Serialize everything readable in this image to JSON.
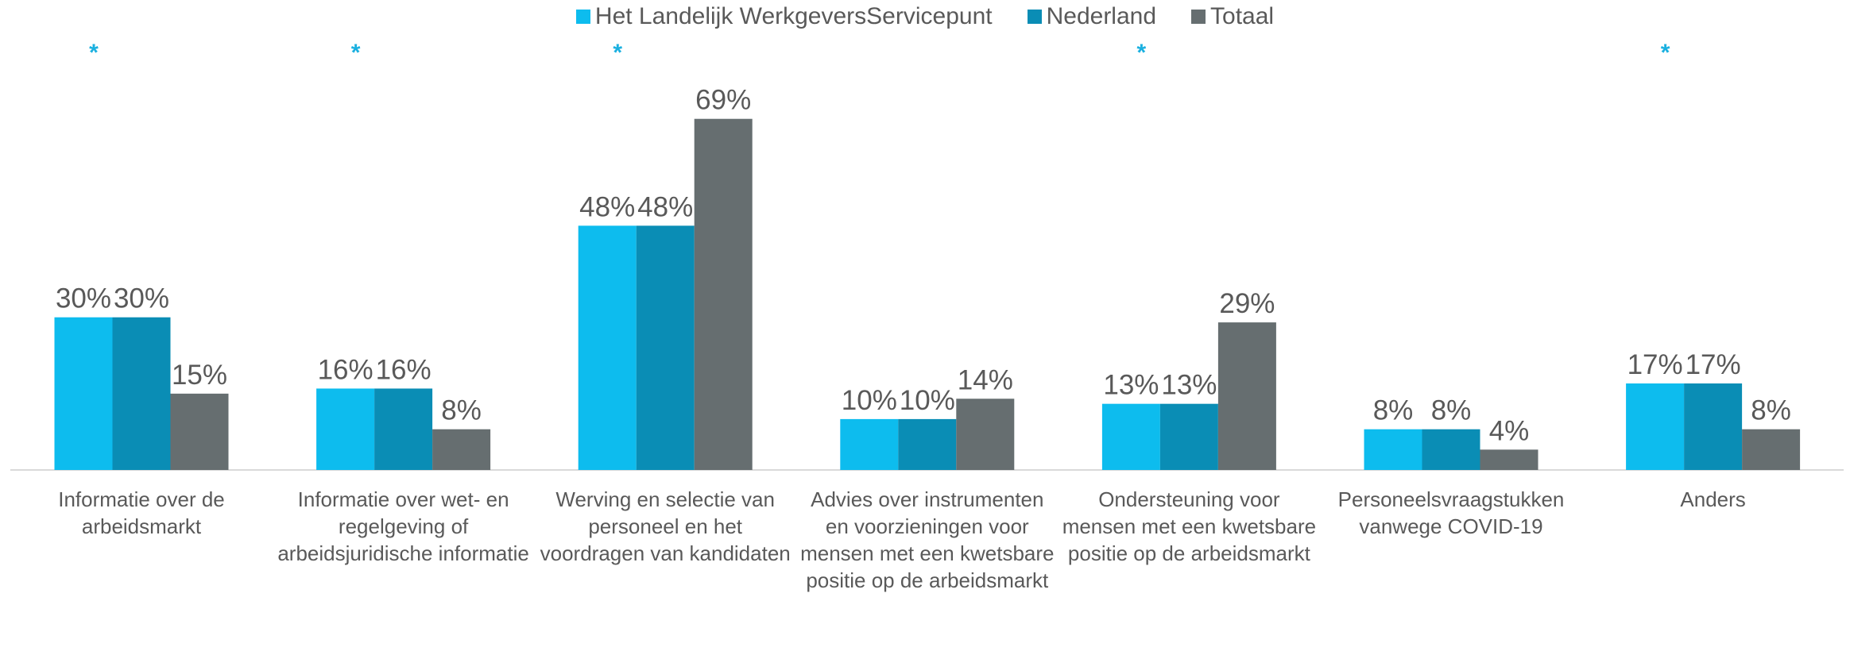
{
  "chart_data": {
    "type": "bar",
    "categories": [
      "Informatie over de arbeidsmarkt",
      "Informatie over wet- en regelgeving of arbeidsjuridische informatie",
      "Werving en selectie van personeel en het voordragen van kandidaten",
      "Advies over instrumenten en voorzieningen voor mensen met een kwetsbare positie op de arbeidsmarkt",
      "Ondersteuning voor mensen met een kwetsbare positie op de arbeidsmarkt",
      "Personeelsvraagstukken vanwege COVID-19",
      "Anders"
    ],
    "series": [
      {
        "name": "Het Landelijk WerkgeversServicepunt",
        "color": "#0dbcee",
        "values": [
          30,
          16,
          48,
          10,
          13,
          8,
          17
        ],
        "value_labels": [
          "30%",
          "16%",
          "48%",
          "10%",
          "13%",
          "8%",
          "17%"
        ]
      },
      {
        "name": "Nederland",
        "color": "#0a8db5",
        "values": [
          30,
          16,
          48,
          10,
          13,
          8,
          17
        ],
        "value_labels": [
          "30%",
          "16%",
          "48%",
          "10%",
          "13%",
          "8%",
          "17%"
        ]
      },
      {
        "name": "Totaal",
        "color": "#666e70",
        "values": [
          15,
          8,
          69,
          14,
          29,
          4,
          8
        ],
        "value_labels": [
          "15%",
          "8%",
          "69%",
          "14%",
          "29%",
          "4%",
          "8%"
        ]
      }
    ],
    "significance": [
      "*",
      "*",
      "*",
      null,
      "*",
      null,
      "*"
    ],
    "legend": "top"
  }
}
